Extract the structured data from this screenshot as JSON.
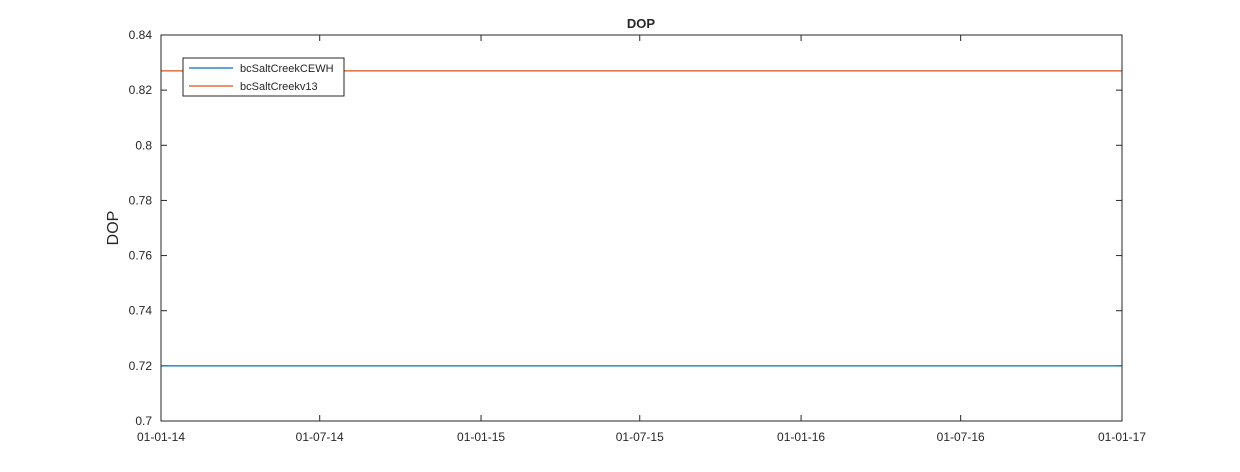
{
  "chart_data": {
    "type": "line",
    "title": "DOP",
    "xlabel": "",
    "ylabel": "DOP",
    "x_ticks": [
      "01-01-14",
      "01-07-14",
      "01-01-15",
      "01-07-15",
      "01-01-16",
      "01-07-16",
      "01-01-17"
    ],
    "xlim": [
      "01-01-14",
      "01-01-17"
    ],
    "y_ticks": [
      "0.7",
      "0.72",
      "0.74",
      "0.76",
      "0.78",
      "0.8",
      "0.82",
      "0.84"
    ],
    "ylim": [
      0.7,
      0.84
    ],
    "grid": false,
    "legend_position": "top-left",
    "series": [
      {
        "name": "bcSaltCreekCEWH",
        "color": "#0072BD",
        "x": [
          "01-01-14",
          "01-01-17"
        ],
        "values": [
          0.72,
          0.72
        ]
      },
      {
        "name": "bcSaltCreekv13",
        "color": "#D95319",
        "x": [
          "01-01-14",
          "01-01-17"
        ],
        "values": [
          0.827,
          0.827
        ]
      }
    ]
  }
}
